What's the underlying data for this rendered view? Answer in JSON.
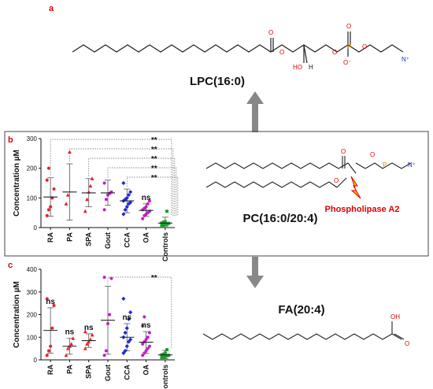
{
  "figure": {
    "panel_a": "a",
    "panel_b": "b",
    "panel_c": "c",
    "lpc_name": "LPC(16:0)",
    "pc_name": "PC(16:0/20:4)",
    "fa_name": "FA(20:4)",
    "enzyme_label": "Phospholipase A2",
    "atoms": {
      "O": "O",
      "P": "P",
      "N": "N",
      "HO": "HO",
      "H": "H",
      "OH": "OH",
      "Ominus": "O⁻",
      "Nplus": "N⁺"
    }
  },
  "colors": {
    "red": "#e8202a",
    "purple": "#c21fc2",
    "blue": "#1f2ad6",
    "green": "#1a9e2a",
    "arrow": "#888888",
    "title_red": "#e00000"
  },
  "chart_data": [
    {
      "type": "scatter",
      "panel": "b",
      "ylabel": "Concentration µM",
      "ylim": [
        0,
        300
      ],
      "yticks": [
        "0",
        "100",
        "200",
        "300"
      ],
      "categories": [
        "RA",
        "PA",
        "SPA",
        "Gout",
        "CCA",
        "OA",
        "Controls"
      ],
      "category_colors": [
        "red",
        "red",
        "red",
        "purple",
        "blue",
        "purple",
        "green"
      ],
      "points": [
        [
          40,
          60,
          70,
          100,
          130,
          160,
          200
        ],
        [
          80,
          110,
          255
        ],
        [
          55,
          95,
          120,
          140,
          165
        ],
        [
          60,
          95,
          110,
          115,
          120,
          150
        ],
        [
          45,
          60,
          70,
          80,
          85,
          90,
          95,
          100,
          110,
          120,
          150
        ],
        [
          30,
          40,
          45,
          50,
          55,
          60,
          65,
          70,
          80,
          90
        ],
        [
          5,
          8,
          10,
          12,
          14,
          15,
          18,
          20,
          55
        ]
      ],
      "mean": [
        103,
        120,
        117,
        117,
        90,
        58,
        15
      ],
      "sd_upper": [
        168,
        215,
        165,
        160,
        130,
        80,
        35
      ],
      "sd_lower": [
        38,
        25,
        70,
        75,
        50,
        38,
        5
      ],
      "annotations": [
        "**",
        "**",
        "**",
        "**",
        "**",
        "ns"
      ]
    },
    {
      "type": "scatter",
      "panel": "c",
      "ylabel": "Concentration µM",
      "ylim": [
        0,
        400
      ],
      "yticks": [
        "0",
        "100",
        "200",
        "300",
        "400"
      ],
      "categories": [
        "RA",
        "PA",
        "SPA",
        "Gout",
        "CCA",
        "OA",
        "Controls"
      ],
      "category_colors": [
        "red",
        "red",
        "red",
        "purple",
        "blue",
        "purple",
        "green"
      ],
      "points": [
        [
          20,
          40,
          60,
          140,
          240,
          270
        ],
        [
          20,
          50,
          60,
          70,
          95
        ],
        [
          50,
          70,
          80,
          90,
          110,
          125
        ],
        [
          20,
          40,
          160,
          200,
          360,
          365
        ],
        [
          30,
          40,
          60,
          80,
          90,
          100,
          120,
          140,
          180,
          210,
          270
        ],
        [
          20,
          30,
          40,
          50,
          60,
          70,
          80,
          90,
          100,
          120,
          150,
          190
        ],
        [
          10,
          12,
          15,
          18,
          20,
          22,
          25,
          30,
          45
        ]
      ],
      "mean": [
        130,
        60,
        85,
        175,
        100,
        78,
        22
      ],
      "sd_upper": [
        230,
        95,
        115,
        325,
        160,
        125,
        42
      ],
      "sd_lower": [
        30,
        25,
        55,
        25,
        40,
        30,
        5
      ],
      "annotations": [
        "ns",
        "ns",
        "ns",
        "**",
        "ns",
        "ns"
      ]
    }
  ]
}
